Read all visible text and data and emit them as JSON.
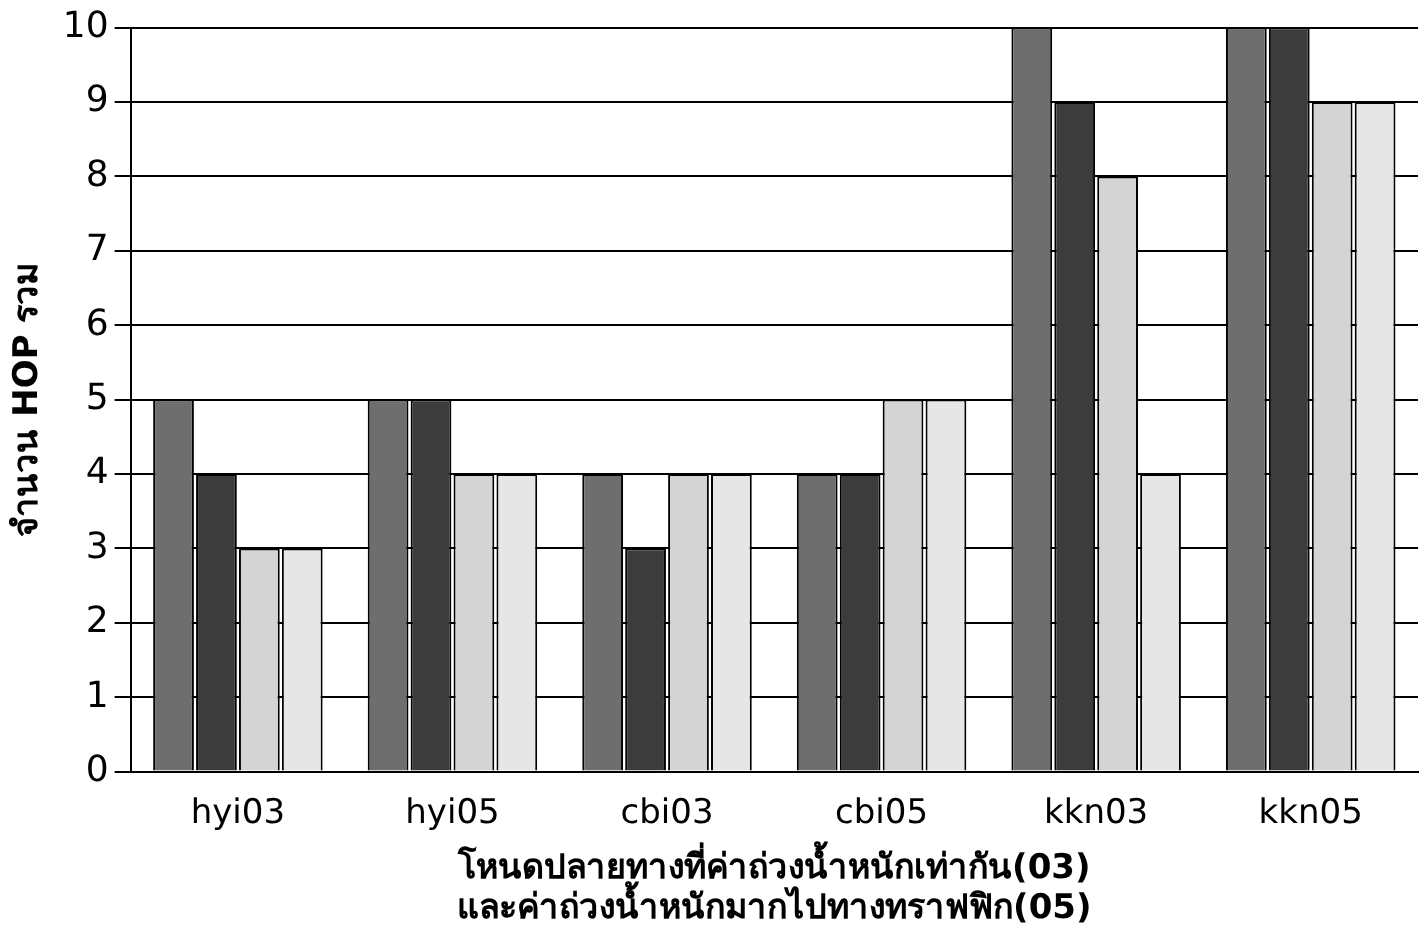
{
  "chart_data": {
    "type": "bar",
    "ylabel": "จำนวน HOP รวม",
    "xlabel": "โหนดปลายทางที่ค่าถ่วงน้ำหนักเท่ากัน(03)\nและค่าถ่วงน้ำหนักมากไปทางทราฟฟิก(05)",
    "categories": [
      "hyi03",
      "hyi05",
      "cbi03",
      "cbi05",
      "kkn03",
      "kkn05"
    ],
    "series": [
      {
        "color": "#6e6e6e",
        "values": [
          5,
          5,
          4,
          4,
          10,
          10
        ]
      },
      {
        "color": "#3c3c3c",
        "values": [
          4,
          5,
          3,
          4,
          9,
          10
        ]
      },
      {
        "color": "#d4d4d4",
        "values": [
          3,
          4,
          4,
          5,
          8,
          9
        ]
      },
      {
        "color": "#e6e6e6",
        "values": [
          3,
          4,
          4,
          5,
          4,
          9
        ]
      }
    ],
    "ylim": [
      0,
      10
    ],
    "yticks": [
      0,
      1,
      2,
      3,
      4,
      5,
      6,
      7,
      8,
      9,
      10
    ],
    "grid": "y",
    "legend": false
  }
}
